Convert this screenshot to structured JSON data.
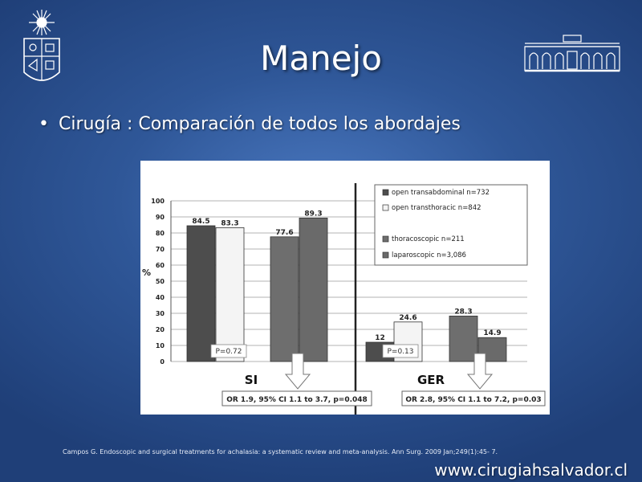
{
  "slide": {
    "title": "Manejo",
    "bullet": "Cirugía : Comparación de todos los abordajes",
    "reference": "Campos G. Endoscopic and surgical treatments for achalasia: a systematic review and meta-analysis. Ann Surg. 2009 Jan;249(1):45- 7.",
    "website": "www.cirugiahsalvador.cl"
  },
  "colors": {
    "background": "#2f5798",
    "open_transabdominal": "#4d4d4d",
    "open_transthoracic": "#f4f4f4",
    "thoracoscopic": "#6e6e6e",
    "laparoscopic": "#6a6a6a"
  },
  "chart_data": {
    "type": "bar",
    "title": "",
    "ylabel": "%",
    "ylim": [
      0,
      100
    ],
    "yticks": [
      0,
      10,
      20,
      30,
      40,
      50,
      60,
      70,
      80,
      90,
      100
    ],
    "grid": true,
    "legend_position": "top-right",
    "categories": [
      "SI",
      "GER"
    ],
    "series": [
      {
        "name": "open transabdominal n=732",
        "values": [
          84.5,
          12
        ],
        "labels": [
          "84.5",
          "12"
        ]
      },
      {
        "name": "open transthoracic n=842",
        "values": [
          83.3,
          24.6
        ],
        "labels": [
          "83.3",
          "24.6"
        ]
      },
      {
        "name": "thoracoscopic n=211",
        "values": [
          77.6,
          28.3
        ],
        "labels": [
          "77.6",
          "28.3"
        ]
      },
      {
        "name": "laparoscopic n=3,086",
        "values": [
          89.3,
          14.9
        ],
        "labels": [
          "89.3",
          "14.9"
        ]
      }
    ],
    "annotations": {
      "p_values": [
        "P=0.72",
        "P=0.13"
      ],
      "odds_ratios": [
        "OR 1.9, 95% CI 1.1 to 3.7, p=0.048",
        "OR 2.8, 95% CI 1.1 to 7.2, p=0.03"
      ]
    }
  }
}
